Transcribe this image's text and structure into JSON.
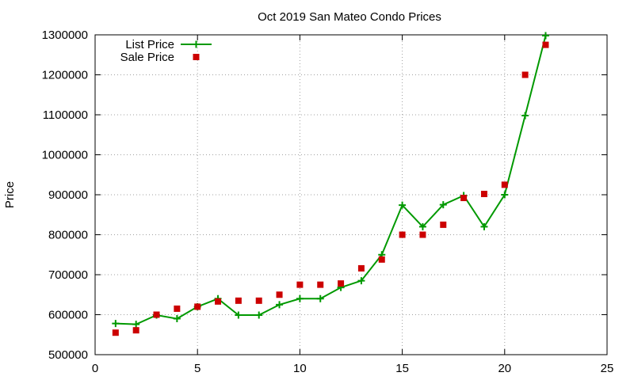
{
  "chart_data": {
    "type": "line",
    "title": "Oct 2019 San Mateo Condo Prices",
    "xlabel": "",
    "ylabel": "Price",
    "xlim": [
      0,
      25
    ],
    "ylim": [
      500000,
      1300000
    ],
    "xticks": [
      0,
      5,
      10,
      15,
      20,
      25
    ],
    "yticks": [
      500000,
      600000,
      700000,
      800000,
      900000,
      1000000,
      1100000,
      1200000,
      1300000
    ],
    "grid": true,
    "legend_position": "top-left",
    "series": [
      {
        "name": "List Price",
        "style": "line-with-plus-markers",
        "color": "#009900",
        "x": [
          1,
          2,
          3,
          4,
          5,
          6,
          7,
          8,
          9,
          10,
          11,
          12,
          13,
          14,
          15,
          16,
          17,
          18,
          19,
          20,
          21,
          22
        ],
        "y": [
          578000,
          576000,
          599000,
          590000,
          620000,
          640000,
          599000,
          599000,
          625000,
          640000,
          640000,
          668000,
          685000,
          750000,
          874000,
          820000,
          875000,
          898000,
          820000,
          900000,
          1098000,
          1298000
        ]
      },
      {
        "name": "Sale Price",
        "style": "square-markers",
        "color": "#cc0000",
        "x": [
          1,
          2,
          3,
          4,
          5,
          6,
          7,
          8,
          9,
          10,
          11,
          12,
          13,
          14,
          15,
          16,
          17,
          18,
          19,
          20,
          21,
          22
        ],
        "y": [
          555000,
          561000,
          600000,
          615000,
          620000,
          633000,
          635000,
          635000,
          650000,
          675000,
          675000,
          678000,
          716000,
          738000,
          800000,
          800000,
          825000,
          892000,
          902000,
          925000,
          1200000,
          1275000
        ]
      }
    ]
  }
}
